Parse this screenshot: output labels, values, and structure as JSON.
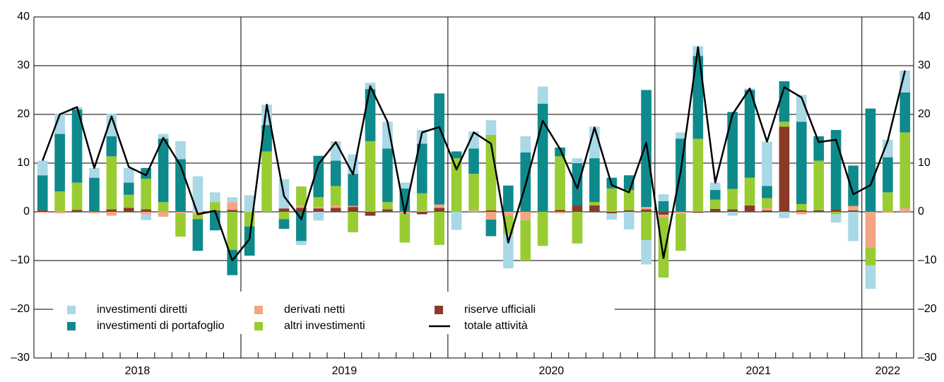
{
  "chart_data": {
    "type": "bar",
    "years": [
      "2018",
      "2019",
      "2020",
      "2021",
      "2022"
    ],
    "categories": [
      null,
      null,
      null,
      null,
      null,
      null,
      null,
      null,
      null,
      null,
      null,
      null,
      null,
      null,
      null,
      null,
      null,
      null,
      null,
      null,
      null,
      null,
      null,
      null,
      null,
      null,
      null,
      null,
      null,
      null,
      null,
      null,
      null,
      null,
      null,
      null,
      null,
      null,
      null,
      null,
      null,
      null,
      null,
      null,
      null,
      null,
      null,
      null,
      null,
      null,
      null
    ],
    "series": [
      {
        "name": "investimenti diretti",
        "color": "#a9d8e6",
        "values": [
          3,
          4.2,
          0.5,
          2,
          4.7,
          3,
          -1.2,
          1,
          3.7,
          7.3,
          2,
          1,
          3.4,
          4.2,
          6,
          -0.8,
          -1.8,
          4,
          4,
          1.3,
          5.5,
          1.2,
          2.8,
          0,
          -3.7,
          3.5,
          3,
          -7,
          3.3,
          3.5,
          0,
          1,
          6.5,
          -1.3,
          -3.6,
          -5,
          1.4,
          1.3,
          2,
          1.5,
          -0.8,
          0.3,
          9.1,
          -1.3,
          5.5,
          0,
          -1.7,
          -6,
          -4.8,
          3.6,
          4.5
        ]
      },
      {
        "name": "investimenti di portafoglio",
        "color": "#0e8a8c",
        "values": [
          7.2,
          11.8,
          15,
          7,
          4.1,
          2.5,
          2.2,
          13,
          10.8,
          -6.5,
          -3.8,
          -5.2,
          -6,
          5.4,
          -2,
          -6,
          8.5,
          5.2,
          6.6,
          10.7,
          11,
          4.8,
          10.2,
          22.8,
          1.4,
          5.2,
          -3.4,
          5.4,
          12.2,
          22.2,
          1.8,
          8.7,
          9,
          2.2,
          3,
          24,
          2.2,
          15,
          17,
          2,
          15.8,
          18,
          2.5,
          8.3,
          16.9,
          5,
          16.3,
          8.3,
          21.2,
          7.2,
          8.2
        ]
      },
      {
        "name": "derivati netti",
        "color": "#f4a582",
        "values": [
          -0.2,
          -0.3,
          0,
          -0.3,
          -0.8,
          0,
          -0.5,
          -1,
          -0.3,
          -0.5,
          0,
          1.6,
          0,
          0,
          0,
          0.4,
          0.3,
          0.5,
          0.2,
          0,
          0,
          -0.3,
          0.2,
          0.7,
          0,
          0.3,
          -1.6,
          -0.8,
          -1.7,
          0,
          -0.3,
          0,
          0,
          0,
          0,
          0.5,
          -0.5,
          -0.4,
          0,
          0,
          0,
          0,
          0.5,
          0,
          -0.5,
          0,
          0,
          0.9,
          -7.3,
          -0.2,
          0.8
        ]
      },
      {
        "name": "altri investimenti",
        "color": "#99cc33",
        "values": [
          0,
          4.2,
          5.6,
          0,
          10.9,
          2.7,
          6.3,
          2,
          -4.8,
          -1,
          1.7,
          -7.8,
          -3,
          12.4,
          -1.5,
          4,
          2,
          4,
          -4.2,
          14.5,
          1.5,
          -6,
          3.6,
          -6.8,
          11,
          7.5,
          15.5,
          -3.8,
          -8.3,
          -7,
          11,
          -6.5,
          0.7,
          4.8,
          4.2,
          -5.8,
          -12.4,
          -7.6,
          15,
          1.9,
          4.2,
          5.7,
          2,
          1,
          1.3,
          10.2,
          -0.5,
          0,
          -3.7,
          4,
          15.5
        ]
      },
      {
        "name": "riserve ufficiali",
        "color": "#8b3a2a",
        "values": [
          0.3,
          0,
          0.4,
          0,
          0.5,
          0.8,
          0.5,
          0,
          0,
          0,
          0.3,
          0.4,
          0,
          0,
          0.7,
          0.8,
          0.7,
          0.8,
          1,
          -0.8,
          0.5,
          0,
          -0.5,
          0.8,
          0,
          0,
          0.3,
          0,
          0,
          0,
          0.4,
          1.3,
          1.3,
          -0.3,
          0.3,
          0.5,
          -0.6,
          0,
          -0.2,
          0.6,
          0.5,
          1.3,
          0.3,
          17.5,
          0.3,
          0.3,
          0.5,
          0.3,
          0,
          0,
          0
        ]
      }
    ],
    "line": {
      "name": "totale attività",
      "color": "#000000",
      "values": [
        10.5,
        20,
        21.5,
        9,
        19.6,
        9.2,
        7.5,
        15.2,
        9.5,
        -0.5,
        0.2,
        -10,
        -5.6,
        22,
        3.2,
        -1.5,
        9.8,
        14.3,
        7.7,
        25.8,
        18.5,
        -0.3,
        16.3,
        17.4,
        8.7,
        16.3,
        14,
        -6.3,
        5.5,
        18.7,
        12.9,
        4.8,
        17.3,
        5.5,
        4,
        14.2,
        -9.5,
        8.3,
        33.8,
        6,
        20,
        25.3,
        14.4,
        25.6,
        23.5,
        14.3,
        14.8,
        3.6,
        5.5,
        14.6,
        29
      ]
    },
    "ylim": [
      -30,
      40
    ],
    "yticks": [
      {
        "value": -30,
        "label": "–30"
      },
      {
        "value": -20,
        "label": "–20"
      },
      {
        "value": -10,
        "label": "–10"
      },
      0,
      10,
      20,
      30,
      40
    ],
    "grid": true
  }
}
